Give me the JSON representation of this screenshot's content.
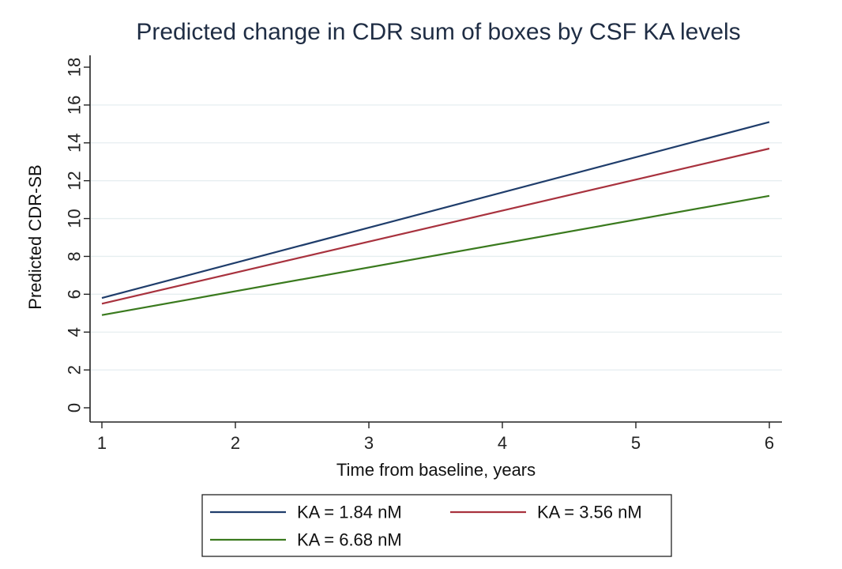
{
  "chart_data": {
    "type": "line",
    "title": "Predicted change in CDR sum of boxes by CSF KA levels",
    "xlabel": "Time from baseline, years",
    "ylabel": "Predicted CDR-SB",
    "xlim": [
      1,
      6
    ],
    "ylim": [
      0,
      18
    ],
    "xticks": [
      "1",
      "2",
      "3",
      "4",
      "5",
      "6"
    ],
    "yticks": [
      "0",
      "2",
      "4",
      "6",
      "8",
      "10",
      "12",
      "14",
      "16",
      "18"
    ],
    "grid": true,
    "legend_position": "bottom",
    "series": [
      {
        "name": "KA = 1.84 nM",
        "color": "#1f3d6b",
        "x": [
          1,
          6
        ],
        "y": [
          5.8,
          15.1
        ]
      },
      {
        "name": "KA = 3.56 nM",
        "color": "#a8323e",
        "x": [
          1,
          6
        ],
        "y": [
          5.5,
          13.7
        ]
      },
      {
        "name": "KA = 6.68 nM",
        "color": "#3a7a1e",
        "x": [
          1,
          6
        ],
        "y": [
          4.9,
          11.2
        ]
      }
    ]
  }
}
